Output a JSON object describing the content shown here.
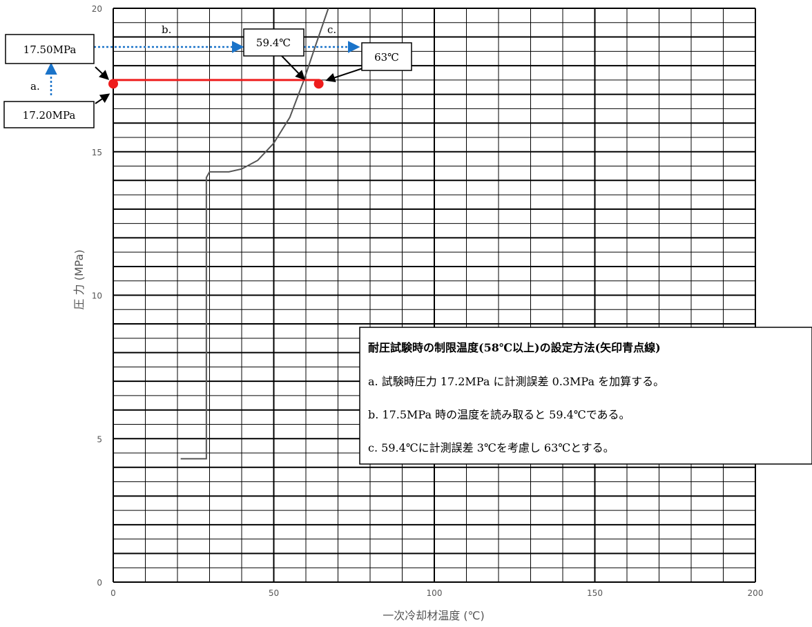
{
  "chart_data": {
    "type": "line",
    "xlabel": "一次冷却材温度 (℃)",
    "ylabel": "圧 力 (MPa)",
    "xlim": [
      0,
      200
    ],
    "ylim": [
      0,
      20
    ],
    "x_ticks": [
      0,
      50,
      100,
      150,
      200
    ],
    "y_ticks": [
      0,
      5,
      10,
      15,
      20
    ],
    "grid": true,
    "series": [
      {
        "color": "#555555",
        "points": [
          [
            21,
            4.3
          ],
          [
            29,
            4.3
          ],
          [
            29,
            14.1
          ],
          [
            30,
            14.3
          ],
          [
            32,
            14.3
          ],
          [
            36,
            14.3
          ],
          [
            40,
            14.4
          ],
          [
            45,
            14.7
          ],
          [
            50,
            15.3
          ],
          [
            55,
            16.2
          ],
          [
            59.4,
            17.5
          ],
          [
            63,
            18.7
          ],
          [
            67,
            20.0
          ]
        ]
      }
    ],
    "markers": [
      {
        "x": 0,
        "y": 17.2,
        "color": "#ee1c1c"
      },
      {
        "x": 64,
        "y": 17.2,
        "color": "#ee1c1c"
      }
    ],
    "red_line": {
      "x1": 0,
      "x2": 64,
      "y": 17.5,
      "color": "#ee1c1c"
    },
    "annotations": {
      "box_1750": "17.50MPa",
      "box_1720": "17.20MPa",
      "box_594": "59.4℃",
      "box_63": "63℃",
      "label_a": "a.",
      "label_b": "b.",
      "label_c": "c.",
      "arrow_color": "#1a73c9"
    },
    "note": {
      "title": "耐圧試験時の制限温度(58℃以上)の設定方法(矢印青点線)",
      "lines": [
        "a. 試験時圧力 17.2MPa に計測誤差 0.3MPa を加算する。",
        "b. 17.5MPa 時の温度を読み取ると 59.4℃である。",
        "c. 59.4℃に計測誤差 3℃を考慮し 63℃とする。"
      ]
    }
  }
}
